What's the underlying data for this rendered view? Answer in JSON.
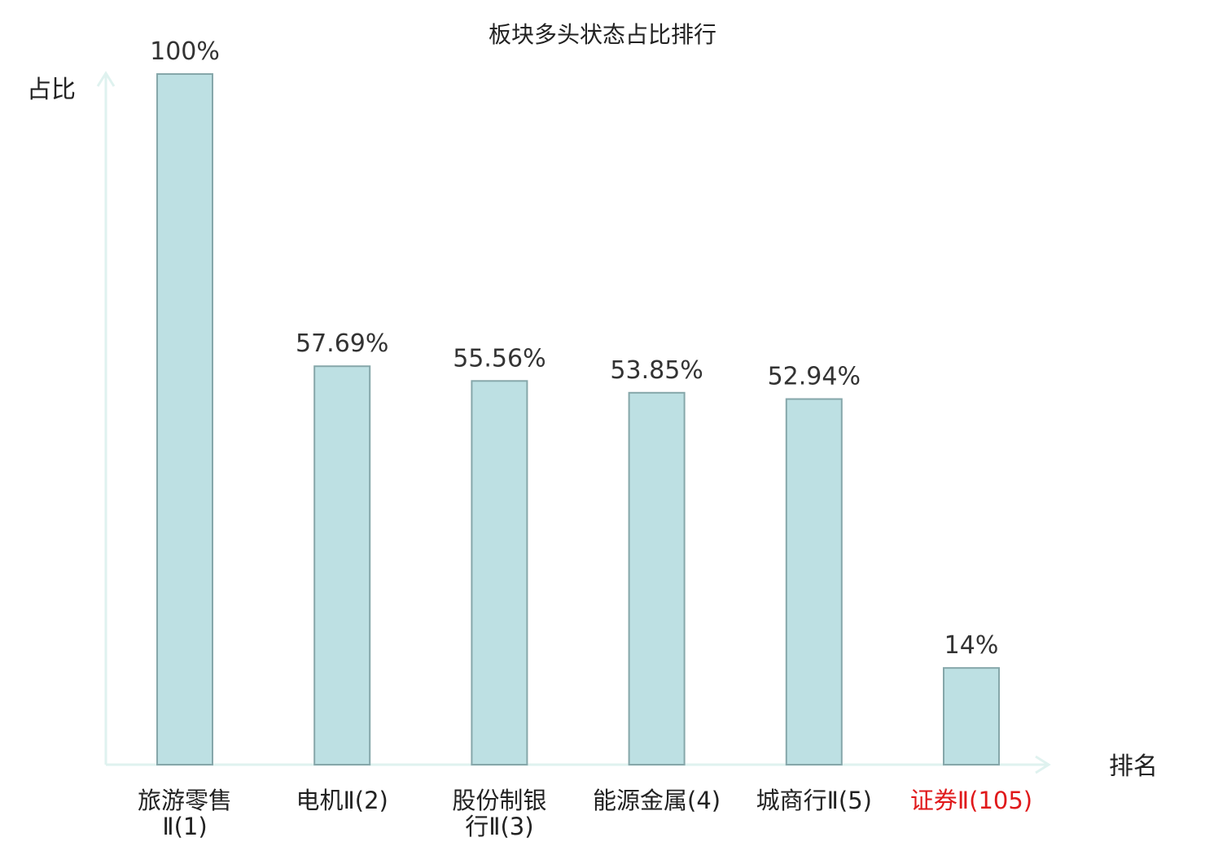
{
  "chart_data": {
    "type": "bar",
    "title": "板块多头状态占比排行",
    "ylabel": "占比",
    "xlabel": "排名",
    "ylim": [
      0,
      100
    ],
    "categories": [
      {
        "lines": [
          "旅游零售",
          "Ⅱ(1)"
        ],
        "highlight": false
      },
      {
        "lines": [
          "电机Ⅱ(2)"
        ],
        "highlight": false
      },
      {
        "lines": [
          "股份制银",
          "行Ⅱ(3)"
        ],
        "highlight": false
      },
      {
        "lines": [
          "能源金属(4)"
        ],
        "highlight": false
      },
      {
        "lines": [
          "城商行Ⅱ(5)"
        ],
        "highlight": false
      },
      {
        "lines": [
          "证券Ⅱ(105)"
        ],
        "highlight": true
      }
    ],
    "values": [
      100,
      57.69,
      55.56,
      53.85,
      52.94,
      14
    ],
    "value_labels": [
      "100%",
      "57.69%",
      "55.56%",
      "53.85%",
      "52.94%",
      "14%"
    ],
    "grid": false,
    "colors": {
      "bar_fill": "#bde0e3",
      "bar_stroke": "#86a7aa",
      "axis": "#dff2ef",
      "text": "#222222",
      "highlight_text": "#e0191b"
    }
  }
}
